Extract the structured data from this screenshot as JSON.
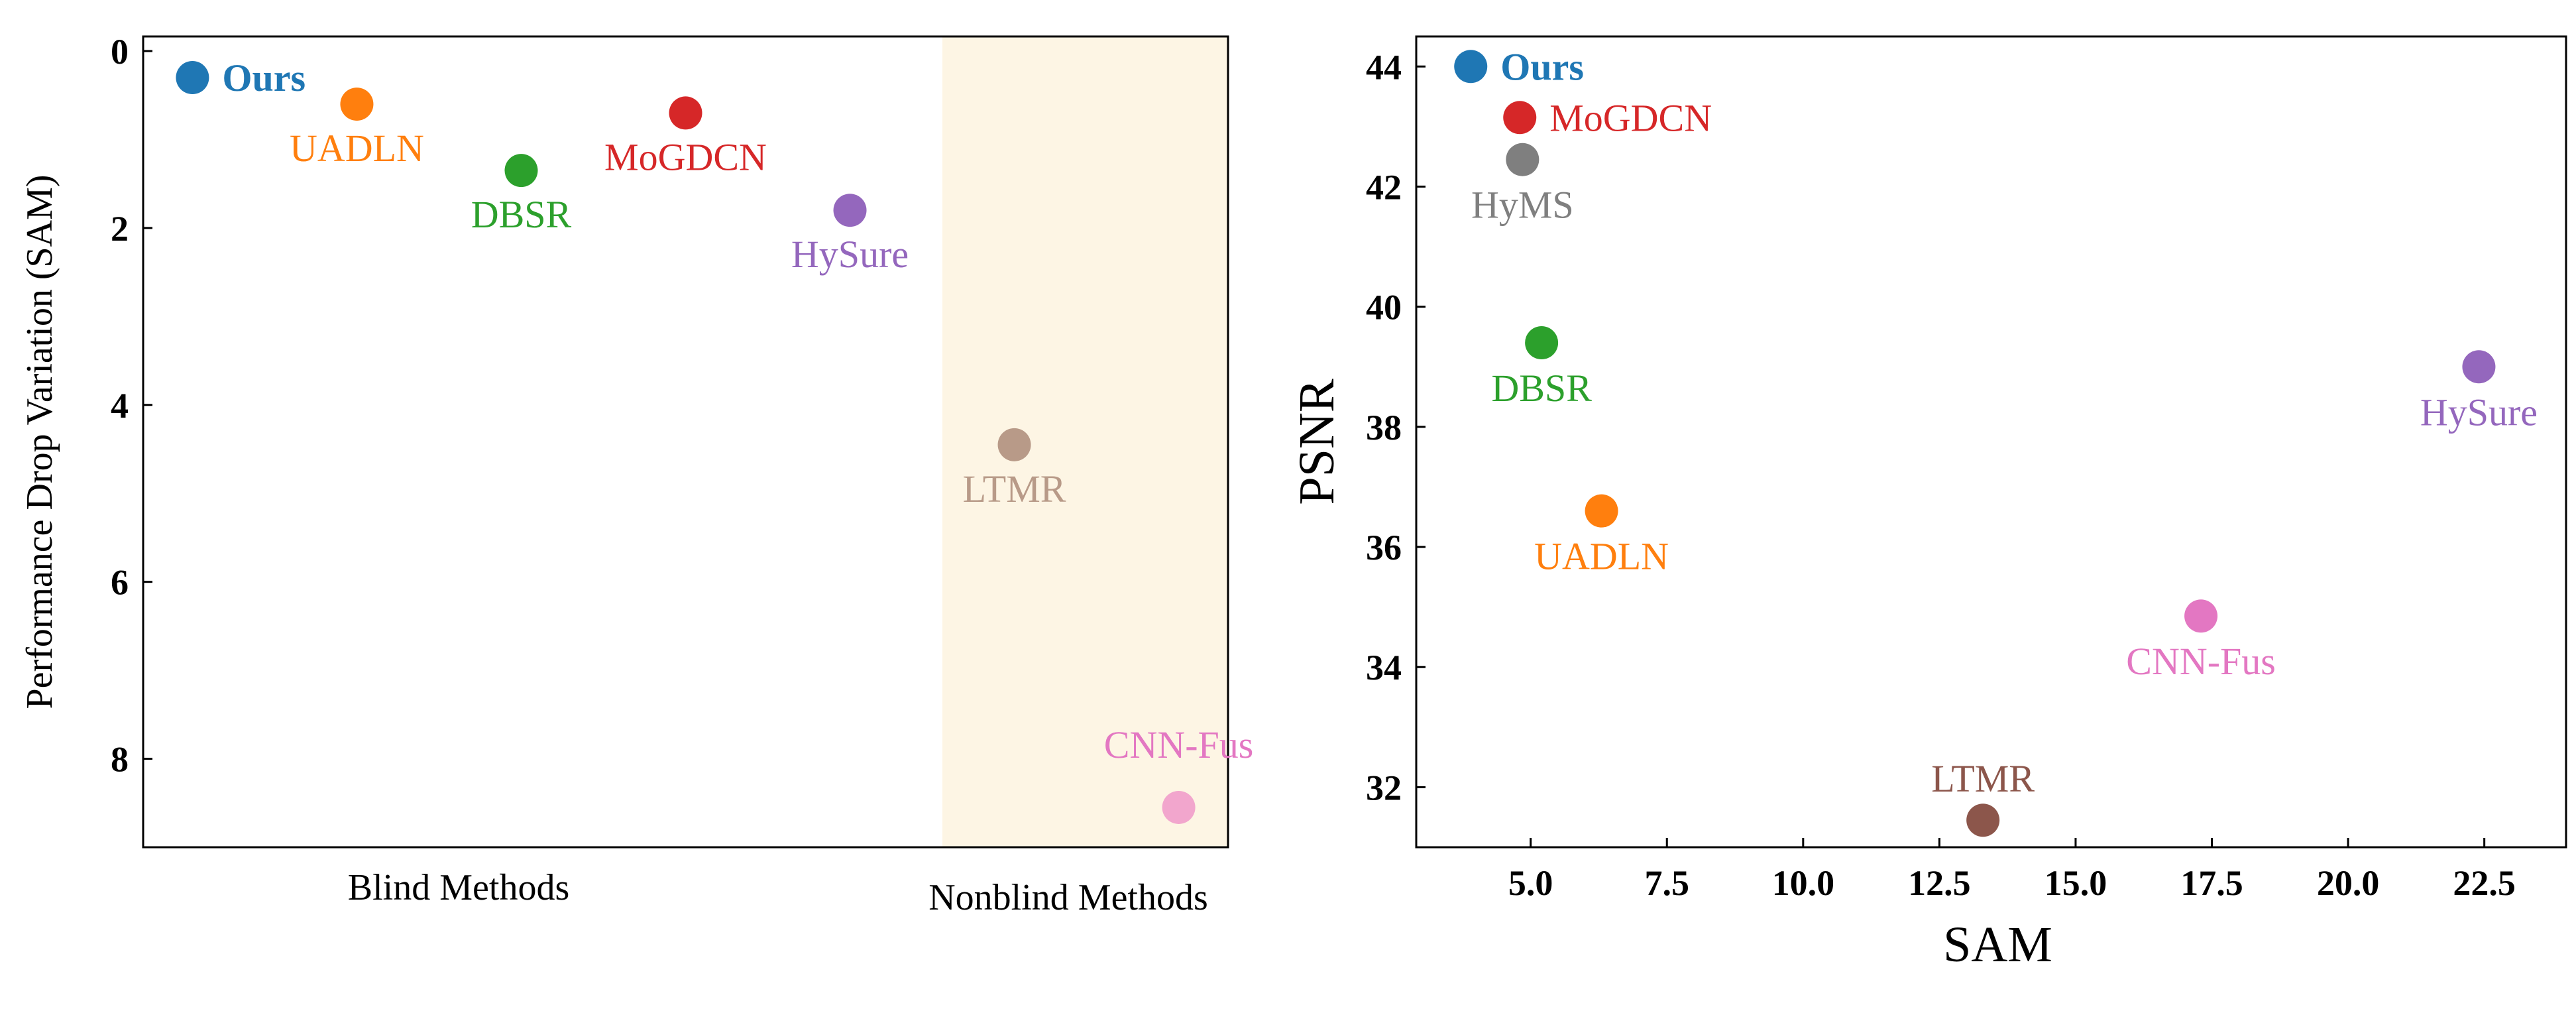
{
  "chart_data": [
    {
      "type": "scatter",
      "xlabel": "",
      "ylabel": "Performance Drop Variation (SAM)",
      "ylim": [
        0,
        9
      ],
      "y_inverted": true,
      "yticks": [
        "0",
        "2",
        "4",
        "6",
        "8"
      ],
      "yticks_bold": true,
      "groups": [
        {
          "label": "Blind Methods",
          "position": "left"
        },
        {
          "label": "Nonblind Methods",
          "position": "right",
          "shaded": true,
          "shade_color": "#fdf5e4"
        }
      ],
      "points": [
        {
          "name": "Ours",
          "slot": 0.3,
          "y": 0.3,
          "color": "#1f77b4",
          "bold": true,
          "label_side": "right"
        },
        {
          "name": "UADLN",
          "slot": 1.3,
          "y": 0.6,
          "color": "#ff7f0e",
          "bold": false,
          "label_side": "below"
        },
        {
          "name": "DBSR",
          "slot": 2.3,
          "y": 1.35,
          "color": "#2ca02c",
          "bold": false,
          "label_side": "below"
        },
        {
          "name": "MoGDCN",
          "slot": 3.3,
          "y": 0.7,
          "color": "#d62728",
          "bold": false,
          "label_side": "below"
        },
        {
          "name": "HySure",
          "slot": 4.3,
          "y": 1.8,
          "color": "#9467bd",
          "bold": false,
          "label_side": "below"
        },
        {
          "name": "LTMR",
          "slot": 5.3,
          "y": 4.45,
          "color": "#b89a88",
          "bold": false,
          "label_side": "below"
        },
        {
          "name": "CNN-Fus",
          "slot": 6.3,
          "y": 8.55,
          "color": "#f2a6cd",
          "bold": false,
          "label_side": "above",
          "label_color": "#e377c2"
        }
      ]
    },
    {
      "type": "scatter",
      "xlabel": "SAM",
      "ylabel": "PSNR",
      "xlim": [
        2.9,
        24.0
      ],
      "ylim": [
        31.0,
        44.5
      ],
      "xticks": [
        "5.0",
        "7.5",
        "10.0",
        "12.5",
        "15.0",
        "17.5",
        "20.0",
        "22.5"
      ],
      "yticks": [
        "32",
        "34",
        "36",
        "38",
        "40",
        "42",
        "44"
      ],
      "ticks_bold": true,
      "points": [
        {
          "name": "Ours",
          "x": 3.9,
          "y": 44.0,
          "color": "#1f77b4",
          "bold": true,
          "label_side": "right"
        },
        {
          "name": "MoGDCN",
          "x": 4.8,
          "y": 43.15,
          "color": "#d62728",
          "bold": false,
          "label_side": "right"
        },
        {
          "name": "HyMS",
          "x": 4.85,
          "y": 42.45,
          "color": "#7f7f7f",
          "bold": false,
          "label_side": "below"
        },
        {
          "name": "DBSR",
          "x": 5.2,
          "y": 39.4,
          "color": "#2ca02c",
          "bold": false,
          "label_side": "below"
        },
        {
          "name": "UADLN",
          "x": 6.3,
          "y": 36.6,
          "color": "#ff7f0e",
          "bold": false,
          "label_side": "below"
        },
        {
          "name": "CNN-Fus",
          "x": 17.3,
          "y": 34.85,
          "color": "#e377c2",
          "bold": false,
          "label_side": "below"
        },
        {
          "name": "LTMR",
          "x": 13.3,
          "y": 31.45,
          "color": "#8c564b",
          "bold": false,
          "label_side": "above"
        },
        {
          "name": "HySure",
          "x": 22.4,
          "y": 39.0,
          "color": "#9467bd",
          "bold": false,
          "label_side": "below"
        }
      ]
    }
  ]
}
